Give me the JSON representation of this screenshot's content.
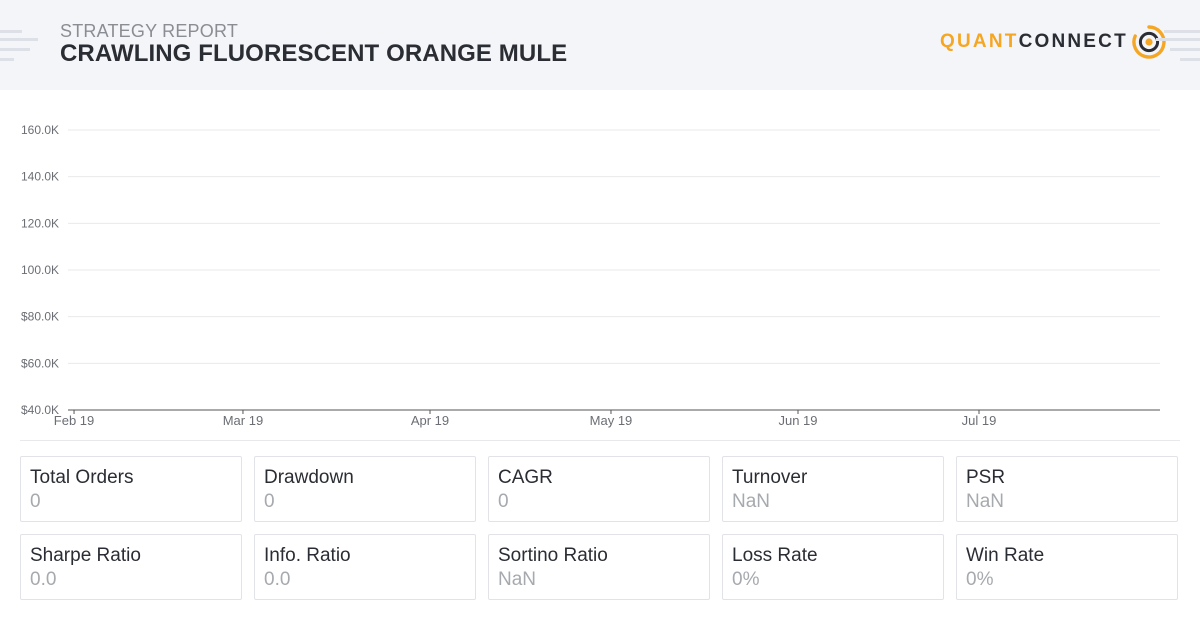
{
  "header": {
    "subtitle": "STRATEGY REPORT",
    "title": "CRAWLING FLUORESCENT ORANGE MULE",
    "logo": {
      "part1": "QUANT",
      "part2": "CONNECT",
      "icon": "quantconnect-logo-icon",
      "accent_color": "#f5a623",
      "dark_color": "#2a2d33"
    }
  },
  "chart_data": {
    "type": "line",
    "title": "",
    "xlabel": "",
    "ylabel": "",
    "y_ticks": [
      "$40.0K",
      "$60.0K",
      "$80.0K",
      "100.0K",
      "120.0K",
      "140.0K",
      "160.0K"
    ],
    "y_tick_values": [
      40000,
      60000,
      80000,
      100000,
      120000,
      140000,
      160000
    ],
    "ylim": [
      40000,
      160000
    ],
    "x_ticks": [
      "Feb 19",
      "Mar 19",
      "Apr 19",
      "May 19",
      "Jun 19",
      "Jul 19"
    ],
    "x_tick_dates": [
      "2019-02-01",
      "2019-03-01",
      "2019-04-01",
      "2019-05-01",
      "2019-06-01",
      "2019-07-01"
    ],
    "xlim": [
      "2019-01-31",
      "2019-07-31"
    ],
    "series": [],
    "grid": true,
    "grid_color": "#e8e9ec",
    "axis_color": "#555555"
  },
  "stats": [
    {
      "label": "Total Orders",
      "value": "0"
    },
    {
      "label": "Drawdown",
      "value": "0"
    },
    {
      "label": "CAGR",
      "value": "0"
    },
    {
      "label": "Turnover",
      "value": "NaN"
    },
    {
      "label": "PSR",
      "value": "NaN"
    },
    {
      "label": "Sharpe Ratio",
      "value": "0.0"
    },
    {
      "label": "Info. Ratio",
      "value": "0.0"
    },
    {
      "label": "Sortino Ratio",
      "value": "NaN"
    },
    {
      "label": "Loss Rate",
      "value": "0%"
    },
    {
      "label": "Win Rate",
      "value": "0%"
    }
  ]
}
